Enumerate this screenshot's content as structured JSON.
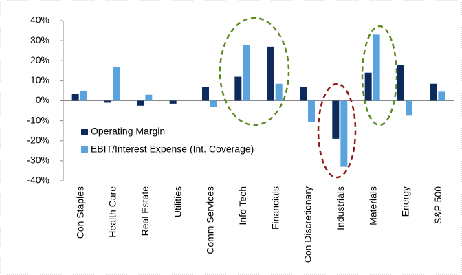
{
  "chart_data": {
    "type": "bar",
    "categories": [
      "Con Staples",
      "Health Care",
      "Real Estate",
      "Utilities",
      "Comm Services",
      "Info Tech",
      "Financials",
      "Con Discretionary",
      "Industrials",
      "Materials",
      "Energy",
      "S&P 500"
    ],
    "series": [
      {
        "name": "Operating Margin",
        "color": "#0d2a5c",
        "values": [
          3.5,
          -1,
          -2.5,
          -1.5,
          7,
          12,
          27,
          7,
          -19,
          14,
          18,
          8.5
        ]
      },
      {
        "name": "EBIT/Interest Expense (Int. Coverage)",
        "color": "#5ba3dc",
        "values": [
          5,
          17,
          3,
          0,
          -3,
          28,
          8.5,
          -10.5,
          -33,
          33,
          -7.5,
          4.5
        ]
      }
    ],
    "ylim": [
      -40,
      40
    ],
    "yticks": [
      {
        "value": -40,
        "label": "-40%"
      },
      {
        "value": -30,
        "label": "-30%"
      },
      {
        "value": -20,
        "label": "-20%"
      },
      {
        "value": -10,
        "label": "-10%"
      },
      {
        "value": 0,
        "label": "0%"
      },
      {
        "value": 10,
        "label": "10%"
      },
      {
        "value": 20,
        "label": "20%"
      },
      {
        "value": 30,
        "label": "30%"
      },
      {
        "value": 40,
        "label": "40%"
      }
    ],
    "grid": false,
    "legend": "left"
  }
}
